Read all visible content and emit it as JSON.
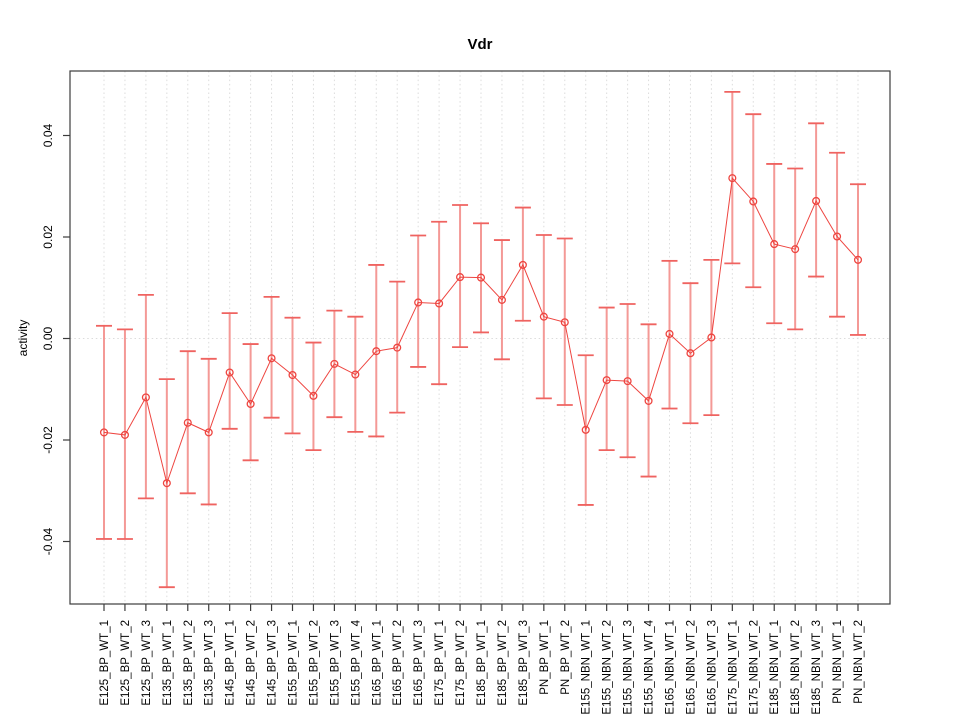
{
  "title": "Vdr",
  "chart_data": {
    "type": "scatter",
    "title": "Vdr",
    "xlabel": "",
    "ylabel": "activity",
    "ylim": [
      -0.052,
      0.052
    ],
    "yticks": [
      -0.04,
      -0.02,
      0,
      0.02,
      0.04
    ],
    "grid": "vertical dotted gridline at every category; dotted horizontal line at y=0",
    "legend_position": "none",
    "point_style": "open-circle connected by line with error bars",
    "colors": {
      "point_line": "#ee4540",
      "error_bar": "#f49996",
      "error_cap": "#ef6360",
      "gridline": "#dcdcdc",
      "axis_box": "#3c3c3c"
    },
    "categories": [
      "E125_BP_WT_1",
      "E125_BP_WT_2",
      "E125_BP_WT_3",
      "E135_BP_WT_1",
      "E135_BP_WT_2",
      "E135_BP_WT_3",
      "E145_BP_WT_1",
      "E145_BP_WT_2",
      "E145_BP_WT_3",
      "E155_BP_WT_1",
      "E155_BP_WT_2",
      "E155_BP_WT_3",
      "E155_BP_WT_4",
      "E165_BP_WT_1",
      "E165_BP_WT_2",
      "E165_BP_WT_3",
      "E175_BP_WT_1",
      "E175_BP_WT_2",
      "E185_BP_WT_1",
      "E185_BP_WT_2",
      "E185_BP_WT_3",
      "PN_BP_WT_1",
      "PN_BP_WT_2",
      "E155_NBN_WT_1",
      "E155_NBN_WT_2",
      "E155_NBN_WT_3",
      "E155_NBN_WT_4",
      "E165_NBN_WT_1",
      "E165_NBN_WT_2",
      "E165_NBN_WT_3",
      "E175_NBN_WT_1",
      "E175_NBN_WT_2",
      "E185_NBN_WT_1",
      "E185_NBN_WT_2",
      "E185_NBN_WT_3",
      "PN_NBN_WT_1",
      "PN_NBN_WT_2"
    ],
    "series": [
      {
        "name": "activity",
        "values": [
          -0.0185,
          -0.019,
          -0.0116,
          -0.0285,
          -0.0166,
          -0.0185,
          -0.0067,
          -0.0129,
          -0.0039,
          -0.0072,
          -0.0113,
          -0.005,
          -0.0071,
          -0.0025,
          -0.0018,
          0.0071,
          0.0069,
          0.0121,
          0.012,
          0.0076,
          0.0145,
          0.0043,
          0.0032,
          -0.018,
          -0.0082,
          -0.0084,
          -0.0123,
          0.0009,
          -0.0029,
          0.0002,
          0.0316,
          0.027,
          0.0186,
          0.0176,
          0.0271,
          0.0201,
          0.0155
        ],
        "ci_low": [
          -0.0395,
          -0.0395,
          -0.0315,
          -0.049,
          -0.0305,
          -0.0327,
          -0.0178,
          -0.024,
          -0.0156,
          -0.0187,
          -0.022,
          -0.0155,
          -0.0184,
          -0.0193,
          -0.0146,
          -0.0056,
          -0.009,
          -0.0017,
          0.0012,
          -0.0041,
          0.0035,
          -0.0118,
          -0.0131,
          -0.0328,
          -0.022,
          -0.0234,
          -0.0272,
          -0.0138,
          -0.0167,
          -0.0151,
          0.0148,
          0.0101,
          0.003,
          0.0018,
          0.0122,
          0.0043,
          0.0007
        ],
        "ci_high": [
          0.0025,
          0.0018,
          0.0086,
          -0.008,
          -0.0025,
          -0.004,
          0.005,
          -0.0011,
          0.0082,
          0.0041,
          -0.0008,
          0.0055,
          0.0043,
          0.0145,
          0.0112,
          0.0203,
          0.023,
          0.0263,
          0.0227,
          0.0194,
          0.0258,
          0.0204,
          0.0197,
          -0.0033,
          0.0061,
          0.0068,
          0.0028,
          0.0153,
          0.0109,
          0.0155,
          0.0486,
          0.0442,
          0.0344,
          0.0335,
          0.0424,
          0.0366,
          0.0304
        ]
      }
    ]
  }
}
